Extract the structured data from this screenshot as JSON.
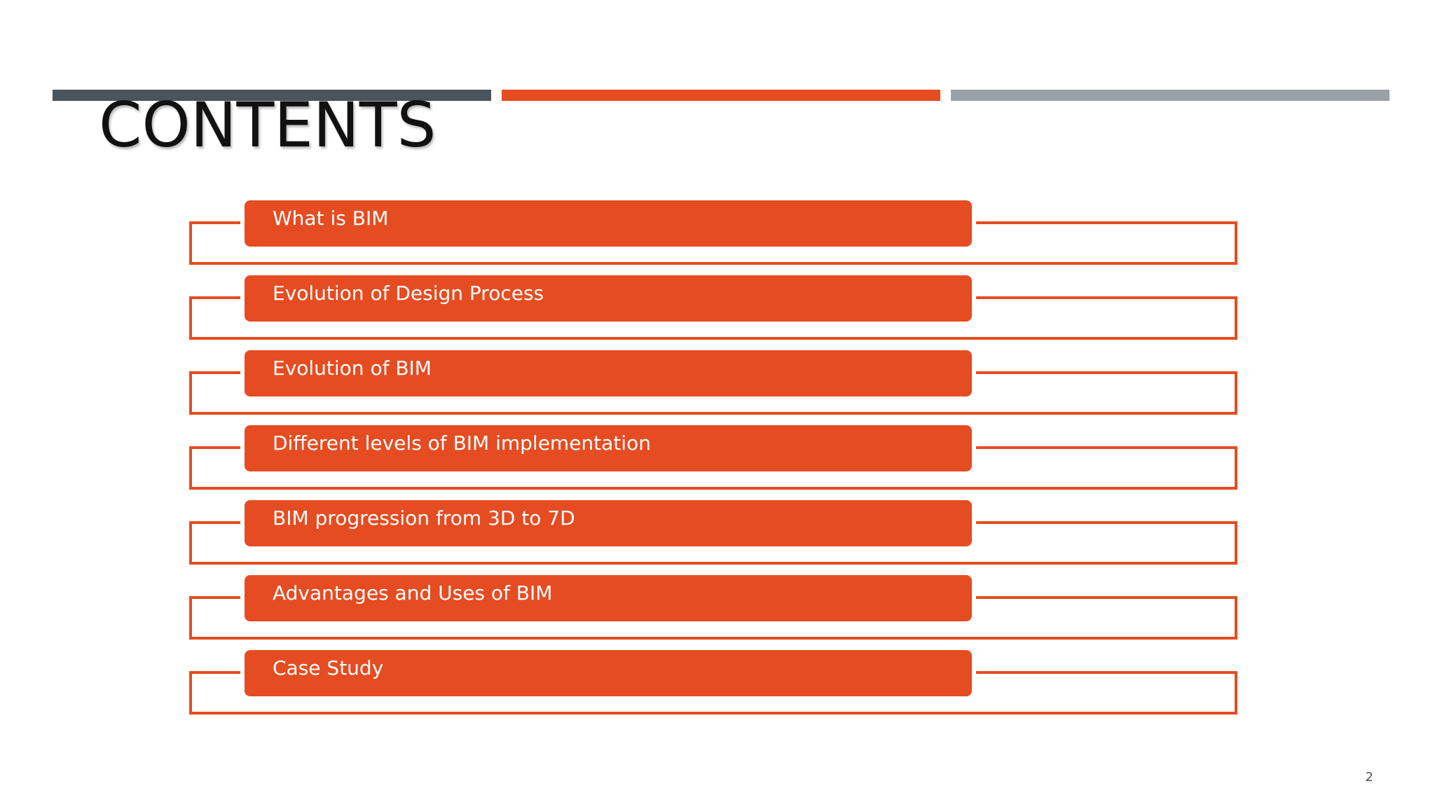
{
  "slide": {
    "title": "CONTENTS",
    "page_number": "2",
    "accent_colors": {
      "left_bar": "#4a545a",
      "middle_bar": "#e64c21",
      "right_bar": "#9aa1a7",
      "item_fill": "#e64c21",
      "item_outline": "#e64c21"
    },
    "agenda_items": [
      {
        "label": "What is BIM"
      },
      {
        "label": "Evolution of Design Process"
      },
      {
        "label": "Evolution of BIM"
      },
      {
        "label": "Different levels of BIM implementation"
      },
      {
        "label": "BIM progression from 3D to 7D"
      },
      {
        "label": "Advantages and Uses of BIM"
      },
      {
        "label": "Case Study"
      }
    ]
  }
}
